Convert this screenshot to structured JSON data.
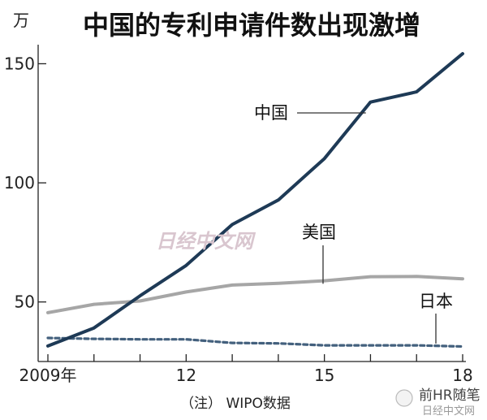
{
  "chart_data": {
    "type": "line",
    "title": "中国的专利申请件数出现激增",
    "unit": "万",
    "x": [
      2009,
      2010,
      2011,
      2012,
      2013,
      2014,
      2015,
      2016,
      2017,
      2018
    ],
    "x_tick_labels": [
      {
        "x": 2009,
        "label": "2009年"
      },
      {
        "x": 2012,
        "label": "12"
      },
      {
        "x": 2015,
        "label": "15"
      },
      {
        "x": 2018,
        "label": "18"
      }
    ],
    "y_ticks": [
      50,
      100,
      150
    ],
    "ylim": [
      25,
      158
    ],
    "grid": false,
    "series": [
      {
        "name": "中国",
        "color": "#1e3a56",
        "style": "solid",
        "values": [
          31.5,
          39.1,
          52.6,
          65.3,
          82.5,
          92.8,
          110.2,
          133.9,
          138.2,
          154.2
        ]
      },
      {
        "name": "美国",
        "color": "#a6a6a6",
        "style": "solid",
        "values": [
          45.5,
          49.0,
          50.4,
          54.2,
          57.1,
          57.8,
          58.9,
          60.6,
          60.7,
          59.7
        ]
      },
      {
        "name": "日本",
        "color": "#43607d",
        "style": "dashed",
        "values": [
          34.9,
          34.5,
          34.3,
          34.3,
          32.8,
          32.6,
          31.8,
          31.8,
          31.8,
          31.3
        ]
      }
    ],
    "note": "（注） WIPO数据"
  },
  "watermarks": {
    "center": "日经中文网",
    "corner_line1": "前HR随笔",
    "corner_line2": "日经中文网"
  }
}
